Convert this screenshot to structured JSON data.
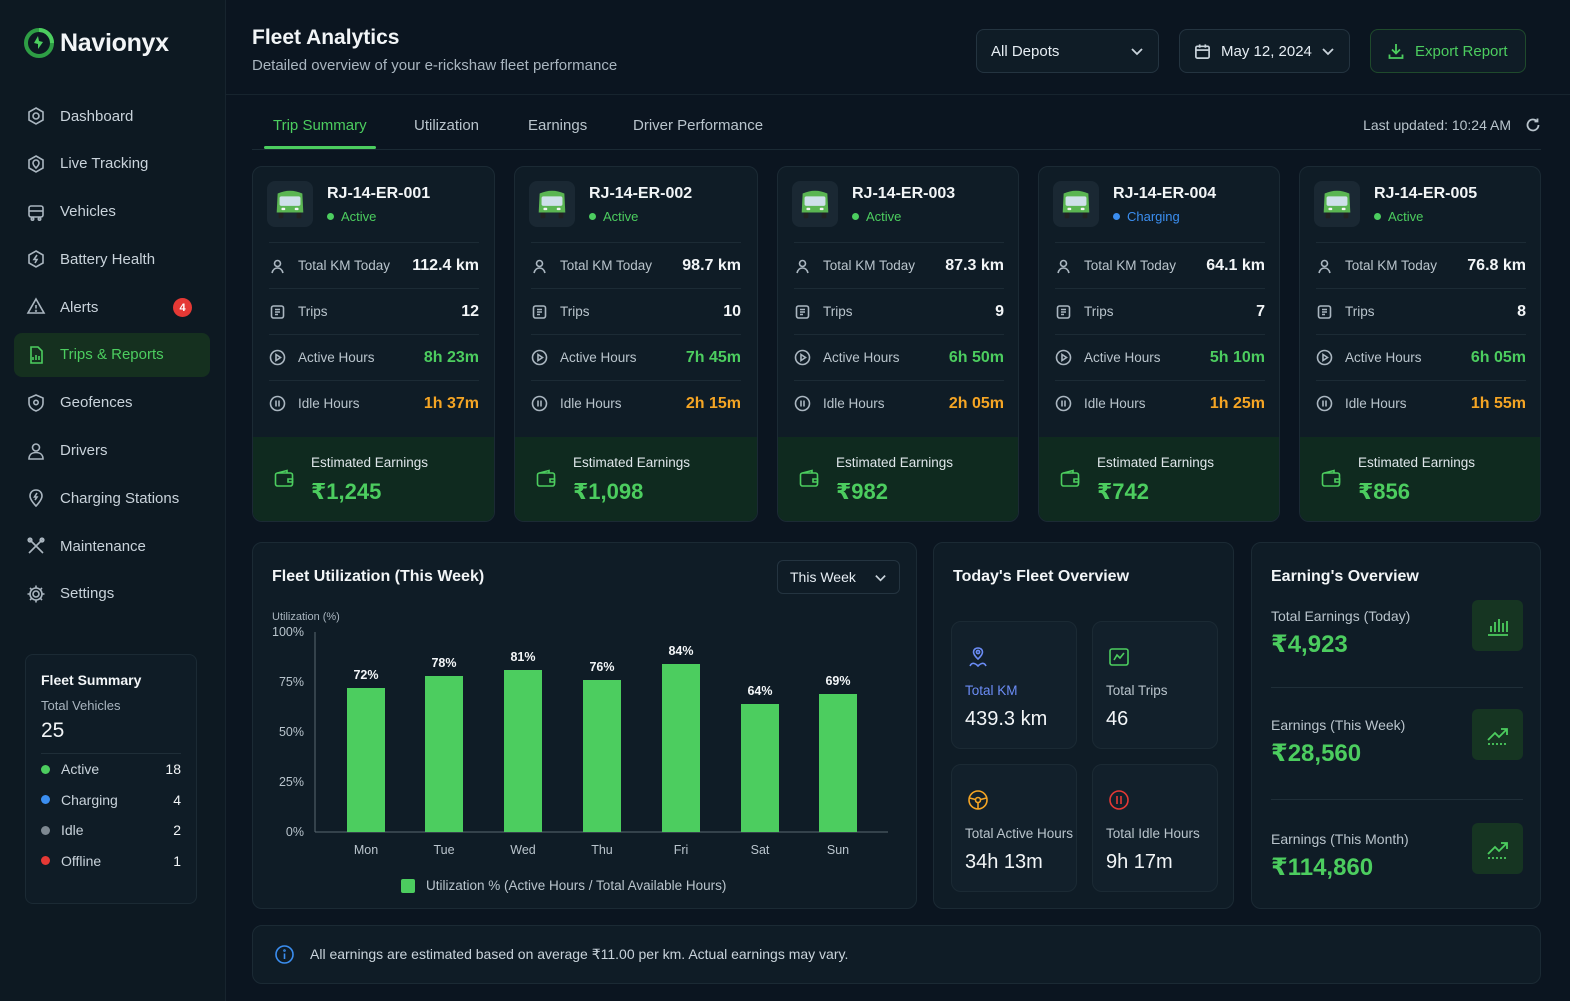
{
  "app": {
    "name": "Navionyx"
  },
  "nav": {
    "items": [
      {
        "label": "Dashboard",
        "icon": "dashboard-icon"
      },
      {
        "label": "Live Tracking",
        "icon": "location-icon"
      },
      {
        "label": "Vehicles",
        "icon": "vehicle-icon"
      },
      {
        "label": "Battery Health",
        "icon": "battery-icon"
      },
      {
        "label": "Alerts",
        "icon": "bell-icon",
        "badge": "4"
      },
      {
        "label": "Trips & Reports",
        "icon": "report-icon",
        "active": true
      },
      {
        "label": "Geofences",
        "icon": "geofence-icon"
      },
      {
        "label": "Drivers",
        "icon": "user-icon"
      },
      {
        "label": "Charging Stations",
        "icon": "charging-icon"
      },
      {
        "label": "Maintenance",
        "icon": "wrench-icon"
      },
      {
        "label": "Settings",
        "icon": "gear-icon"
      }
    ]
  },
  "fleet_summary": {
    "title": "Fleet Summary",
    "total_label": "Total Vehicles",
    "total": "25",
    "rows": [
      {
        "label": "Active",
        "count": "18",
        "color": "#4ccd5f"
      },
      {
        "label": "Charging",
        "count": "4",
        "color": "#3b8ef0"
      },
      {
        "label": "Idle",
        "count": "2",
        "color": "#7d8891"
      },
      {
        "label": "Offline",
        "count": "1",
        "color": "#e53935"
      }
    ]
  },
  "header": {
    "title": "Fleet Analytics",
    "subtitle": "Detailed overview of your e-rickshaw fleet performance",
    "depot": "All Depots",
    "date": "May 12, 2024",
    "export": "Export Report"
  },
  "tabs": {
    "items": [
      "Trip Summary",
      "Utilization",
      "Earnings",
      "Driver Performance"
    ],
    "active": "Trip Summary",
    "updated": "Last updated: 10:24 AM"
  },
  "vehicle_labels": {
    "km": "Total KM Today",
    "trips": "Trips",
    "active": "Active Hours",
    "idle": "Idle Hours",
    "earnings": "Estimated Earnings"
  },
  "vehicles": [
    {
      "id": "RJ-14-ER-001",
      "status": "Active",
      "status_color": "#4ccd5f",
      "km": "112.4 km",
      "trips": "12",
      "active_hours": "8h 23m",
      "idle_hours": "1h 37m",
      "earnings": "₹1,245"
    },
    {
      "id": "RJ-14-ER-002",
      "status": "Active",
      "status_color": "#4ccd5f",
      "km": "98.7 km",
      "trips": "10",
      "active_hours": "7h 45m",
      "idle_hours": "2h 15m",
      "earnings": "₹1,098"
    },
    {
      "id": "RJ-14-ER-003",
      "status": "Active",
      "status_color": "#4ccd5f",
      "km": "87.3 km",
      "trips": "9",
      "active_hours": "6h 50m",
      "idle_hours": "2h 05m",
      "earnings": "₹982"
    },
    {
      "id": "RJ-14-ER-004",
      "status": "Charging",
      "status_color": "#3b8ef0",
      "km": "64.1 km",
      "trips": "7",
      "active_hours": "5h 10m",
      "idle_hours": "1h 25m",
      "earnings": "₹742"
    },
    {
      "id": "RJ-14-ER-005",
      "status": "Active",
      "status_color": "#4ccd5f",
      "km": "76.8 km",
      "trips": "8",
      "active_hours": "6h 05m",
      "idle_hours": "1h 55m",
      "earnings": "₹856"
    }
  ],
  "utilization": {
    "title": "Fleet Utilization (This Week)",
    "range": "This Week",
    "legend": "Utilization % (Active Hours / Total Available Hours)"
  },
  "chart_data": {
    "type": "bar",
    "title": "Fleet Utilization (This Week)",
    "ylabel": "Utilization (%)",
    "categories": [
      "Mon",
      "Tue",
      "Wed",
      "Thu",
      "Fri",
      "Sat",
      "Sun"
    ],
    "values": [
      72,
      78,
      81,
      76,
      84,
      64,
      69
    ],
    "data_labels": [
      "72%",
      "78%",
      "81%",
      "76%",
      "84%",
      "64%",
      "69%"
    ],
    "yticks": [
      "0%",
      "25%",
      "50%",
      "75%",
      "100%"
    ],
    "ylim": [
      0,
      100
    ],
    "series": [
      {
        "name": "Utilization % (Active Hours / Total Available Hours)",
        "values": [
          72,
          78,
          81,
          76,
          84,
          64,
          69
        ]
      }
    ],
    "color": "#4ccd5f",
    "grid": false,
    "legend_position": "bottom"
  },
  "overview": {
    "title": "Today's Fleet Overview",
    "tiles": [
      {
        "label": "Total KM",
        "value": "439.3 km",
        "icon": "route-icon",
        "color": "#6b8cf5"
      },
      {
        "label": "Total Trips",
        "value": "46",
        "icon": "trips-icon",
        "color": "#4ccd5f"
      },
      {
        "label": "Total Active Hours",
        "value": "34h 13m",
        "icon": "steering-icon",
        "color": "#f5a524"
      },
      {
        "label": "Total Idle Hours",
        "value": "9h 17m",
        "icon": "pause-icon",
        "color": "#e53935"
      }
    ]
  },
  "earnings": {
    "title": "Earning's Overview",
    "rows": [
      {
        "label": "Total Earnings (Today)",
        "value": "₹4,923",
        "icon": "bar-chart-icon"
      },
      {
        "label": "Earnings (This Week)",
        "value": "₹28,560",
        "icon": "trend-up-icon"
      },
      {
        "label": "Earnings (This Month)",
        "value": "₹114,860",
        "icon": "trend-up-icon"
      }
    ]
  },
  "note": "All earnings are estimated based on average ₹11.00 per km. Actual earnings may vary."
}
